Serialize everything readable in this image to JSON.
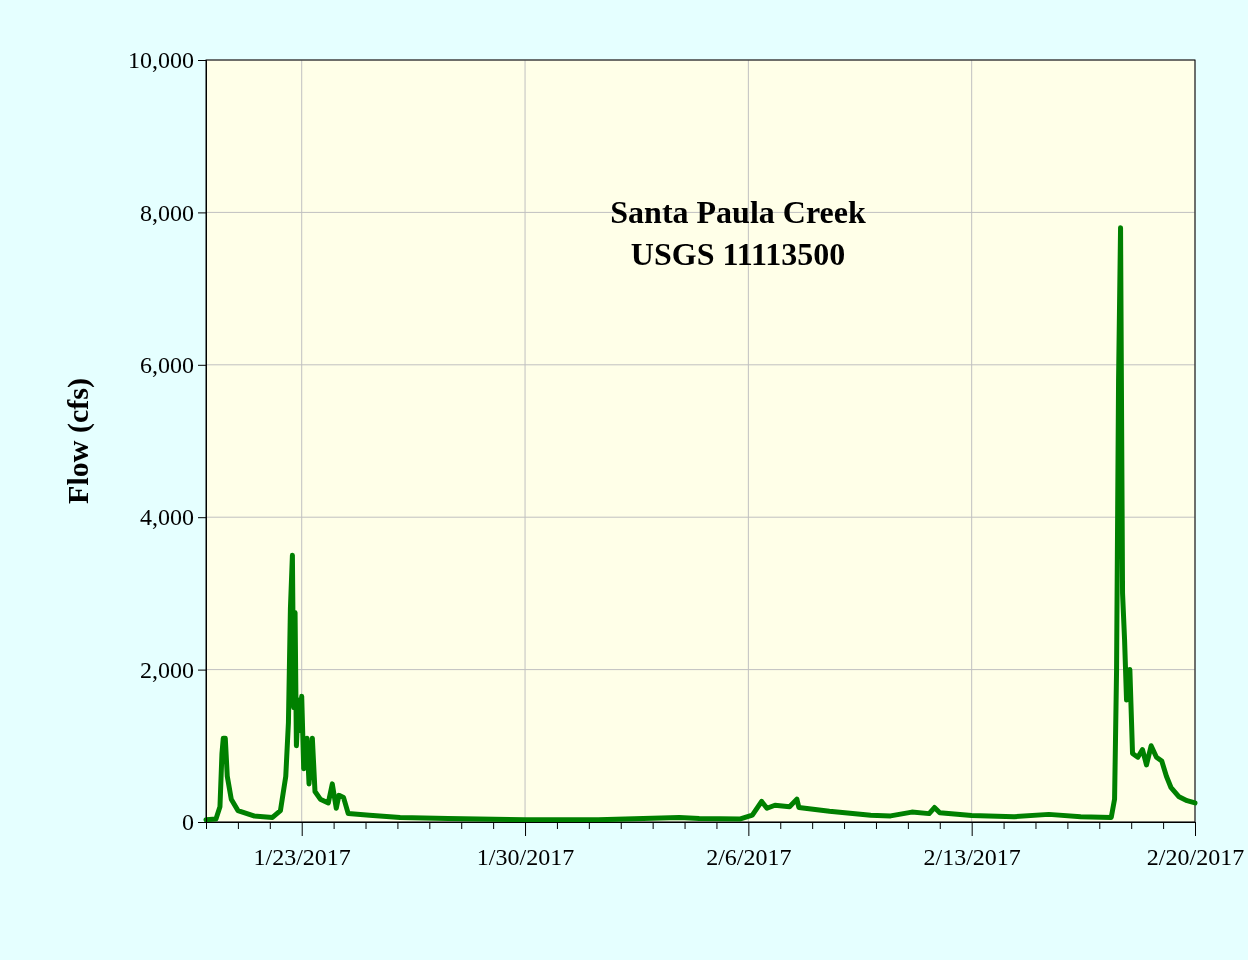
{
  "chart_data": {
    "type": "line",
    "title": "Santa Paula Creek",
    "subtitle": "USGS 11113500",
    "ylabel": "Flow (cfs)",
    "xlim": [
      "2017-01-20",
      "2017-02-20"
    ],
    "xticks": [
      {
        "value": "2017-01-20",
        "label": null
      },
      {
        "value": "2017-01-21",
        "label": null
      },
      {
        "value": "2017-01-22",
        "label": null
      },
      {
        "value": "2017-01-23",
        "label": "1/23/2017"
      },
      {
        "value": "2017-01-24",
        "label": null
      },
      {
        "value": "2017-01-25",
        "label": null
      },
      {
        "value": "2017-01-26",
        "label": null
      },
      {
        "value": "2017-01-27",
        "label": null
      },
      {
        "value": "2017-01-28",
        "label": null
      },
      {
        "value": "2017-01-29",
        "label": null
      },
      {
        "value": "2017-01-30",
        "label": "1/30/2017"
      },
      {
        "value": "2017-01-31",
        "label": null
      },
      {
        "value": "2017-02-01",
        "label": null
      },
      {
        "value": "2017-02-02",
        "label": null
      },
      {
        "value": "2017-02-03",
        "label": null
      },
      {
        "value": "2017-02-04",
        "label": null
      },
      {
        "value": "2017-02-05",
        "label": null
      },
      {
        "value": "2017-02-06",
        "label": "2/6/2017"
      },
      {
        "value": "2017-02-07",
        "label": null
      },
      {
        "value": "2017-02-08",
        "label": null
      },
      {
        "value": "2017-02-09",
        "label": null
      },
      {
        "value": "2017-02-10",
        "label": null
      },
      {
        "value": "2017-02-11",
        "label": null
      },
      {
        "value": "2017-02-12",
        "label": null
      },
      {
        "value": "2017-02-13",
        "label": "2/13/2017"
      },
      {
        "value": "2017-02-14",
        "label": null
      },
      {
        "value": "2017-02-15",
        "label": null
      },
      {
        "value": "2017-02-16",
        "label": null
      },
      {
        "value": "2017-02-17",
        "label": null
      },
      {
        "value": "2017-02-18",
        "label": null
      },
      {
        "value": "2017-02-19",
        "label": null
      },
      {
        "value": "2017-02-20",
        "label": "2/20/2017"
      }
    ],
    "ylim": [
      0,
      10000
    ],
    "yticks": [
      0,
      {
        "value": 2000,
        "label": "2,000"
      },
      {
        "value": 4000,
        "label": "4,000"
      },
      {
        "value": 6000,
        "label": "6,000"
      },
      {
        "value": 8000,
        "label": "8,000"
      },
      {
        "value": 10000,
        "label": "10,000"
      }
    ],
    "grid": true,
    "marker": "none",
    "line_style": "solid",
    "x": [
      "2017-01-20T00:00",
      "2017-01-20T07:30",
      "2017-01-20T10:30",
      "2017-01-20T12:00",
      "2017-01-20T13:00",
      "2017-01-20T14:30",
      "2017-01-20T16:00",
      "2017-01-20T19:00",
      "2017-01-21T00:00",
      "2017-01-21T12:00",
      "2017-01-22T02:00",
      "2017-01-22T08:00",
      "2017-01-22T12:00",
      "2017-01-22T14:00",
      "2017-01-22T15:30",
      "2017-01-22T17:00",
      "2017-01-22T18:00",
      "2017-01-22T19:00",
      "2017-01-22T20:00",
      "2017-01-22T21:30",
      "2017-01-22T23:00",
      "2017-01-23T00:00",
      "2017-01-23T01:30",
      "2017-01-23T04:00",
      "2017-01-23T05:30",
      "2017-01-23T08:00",
      "2017-01-23T10:00",
      "2017-01-23T14:00",
      "2017-01-23T20:00",
      "2017-01-23T23:00",
      "2017-01-24T02:00",
      "2017-01-24T04:00",
      "2017-01-24T07:30",
      "2017-01-24T11:00",
      "2017-01-25T03:00",
      "2017-01-26T02:00",
      "2017-01-27T14:00",
      "2017-01-30T00:00",
      "2017-02-01T07:00",
      "2017-02-03T20:00",
      "2017-02-04T11:00",
      "2017-02-05T18:00",
      "2017-02-06T03:00",
      "2017-02-06T10:00",
      "2017-02-06T14:00",
      "2017-02-06T20:00",
      "2017-02-07T07:00",
      "2017-02-07T12:30",
      "2017-02-07T14:00",
      "2017-02-08T13:00",
      "2017-02-09T20:00",
      "2017-02-10T11:00",
      "2017-02-11T03:00",
      "2017-02-11T16:00",
      "2017-02-11T20:00",
      "2017-02-12T00:00",
      "2017-02-13T00:00",
      "2017-02-14T08:00",
      "2017-02-15T10:00",
      "2017-02-16T10:00",
      "2017-02-17T09:00",
      "2017-02-17T11:30",
      "2017-02-17T13:00",
      "2017-02-17T14:30",
      "2017-02-17T16:00",
      "2017-02-17T17:30",
      "2017-02-17T19:00",
      "2017-02-17T20:30",
      "2017-02-17T23:00",
      "2017-02-18T01:00",
      "2017-02-18T05:00",
      "2017-02-18T08:30",
      "2017-02-18T11:30",
      "2017-02-18T15:00",
      "2017-02-18T19:00",
      "2017-02-18T23:00",
      "2017-02-19T02:30",
      "2017-02-19T06:00",
      "2017-02-19T12:00",
      "2017-02-19T18:00",
      "2017-02-20T00:00"
    ],
    "series": [
      {
        "color": "#008000",
        "values": [
          30,
          40,
          200,
          900,
          1100,
          1100,
          600,
          300,
          150,
          80,
          60,
          150,
          600,
          1300,
          2800,
          3500,
          1500,
          2750,
          1000,
          1600,
          1200,
          1650,
          700,
          1100,
          500,
          1100,
          400,
          300,
          250,
          500,
          180,
          350,
          320,
          110,
          90,
          60,
          45,
          30,
          30,
          60,
          45,
          40,
          90,
          270,
          180,
          220,
          200,
          300,
          190,
          140,
          90,
          80,
          130,
          110,
          190,
          120,
          85,
          70,
          100,
          70,
          60,
          300,
          2000,
          5800,
          7800,
          3000,
          2400,
          1600,
          2000,
          900,
          850,
          950,
          750,
          1000,
          850,
          800,
          600,
          450,
          330,
          280,
          250
        ]
      }
    ]
  }
}
